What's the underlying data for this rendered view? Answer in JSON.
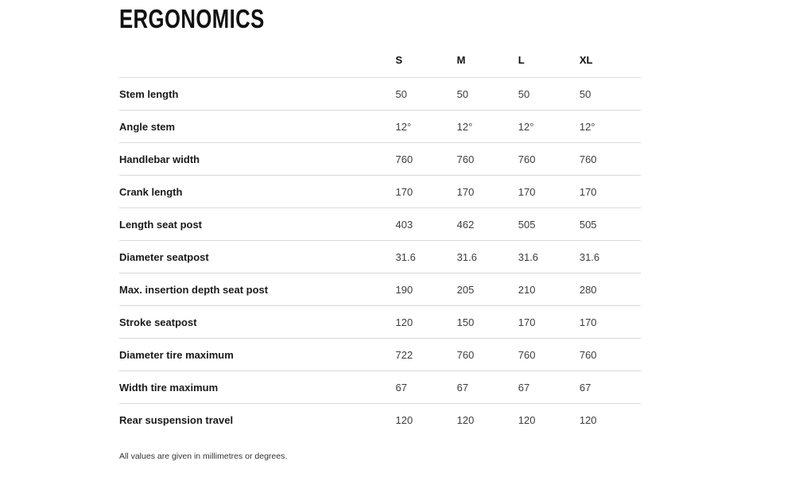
{
  "page": {
    "title": "ERGONOMICS",
    "footnote": "All values are given in millimetres or degrees."
  },
  "table": {
    "columns": [
      "S",
      "M",
      "L",
      "XL"
    ],
    "rows": [
      {
        "label": "Stem length",
        "values": [
          "50",
          "50",
          "50",
          "50"
        ]
      },
      {
        "label": "Angle stem",
        "values": [
          "12°",
          "12°",
          "12°",
          "12°"
        ]
      },
      {
        "label": "Handlebar width",
        "values": [
          "760",
          "760",
          "760",
          "760"
        ]
      },
      {
        "label": "Crank length",
        "values": [
          "170",
          "170",
          "170",
          "170"
        ]
      },
      {
        "label": "Length seat post",
        "values": [
          "403",
          "462",
          "505",
          "505"
        ]
      },
      {
        "label": "Diameter seatpost",
        "values": [
          "31.6",
          "31.6",
          "31.6",
          "31.6"
        ]
      },
      {
        "label": "Max. insertion depth seat post",
        "values": [
          "190",
          "205",
          "210",
          "280"
        ]
      },
      {
        "label": "Stroke seatpost",
        "values": [
          "120",
          "150",
          "170",
          "170"
        ]
      },
      {
        "label": "Diameter tire maximum",
        "values": [
          "722",
          "760",
          "760",
          "760"
        ]
      },
      {
        "label": "Width tire maximum",
        "values": [
          "67",
          "67",
          "67",
          "67"
        ]
      },
      {
        "label": "Rear suspension travel",
        "values": [
          "120",
          "120",
          "120",
          "120"
        ]
      }
    ]
  },
  "colors": {
    "background": "#ffffff",
    "title_text": "#111111",
    "label_text": "#1a1a1a",
    "value_text": "#3d3d3d",
    "divider": "#d9d9d9"
  }
}
